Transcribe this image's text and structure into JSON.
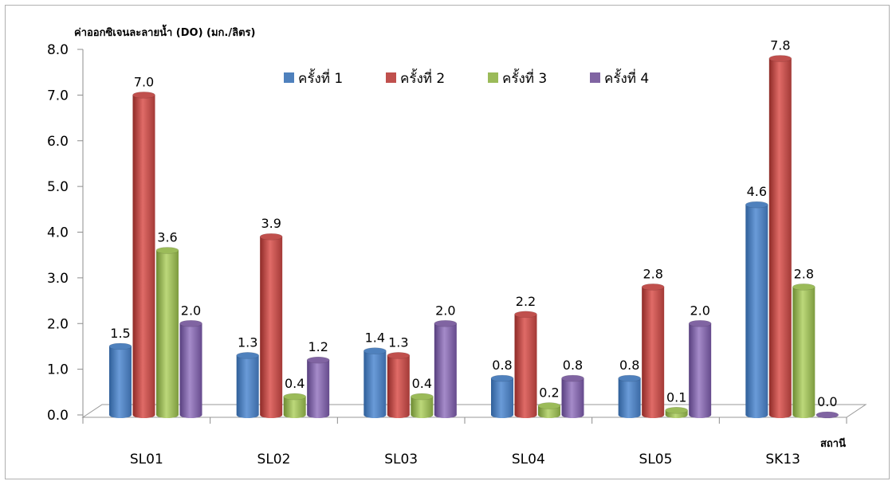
{
  "chart_data": {
    "type": "bar",
    "title": "",
    "ylabel": "ค่าออกซิเจนละลายน้ำ (DO) (มก./ลิตร)",
    "xlabel": "สถานี",
    "ylim": [
      0,
      8
    ],
    "yticks": [
      "0.0",
      "1.0",
      "2.0",
      "3.0",
      "4.0",
      "5.0",
      "6.0",
      "7.0",
      "8.0"
    ],
    "categories": [
      "SL01",
      "SL02",
      "SL03",
      "SL04",
      "SL05",
      "SK13"
    ],
    "legend_position": "top",
    "series": [
      {
        "name": "ครั้งที่ 1",
        "color": "#4f81bd",
        "values": [
          1.5,
          1.3,
          1.4,
          0.8,
          0.8,
          4.6
        ],
        "labels": [
          "1.5",
          "1.3",
          "1.4",
          "0.8",
          "0.8",
          "4.6"
        ]
      },
      {
        "name": "ครั้งที่ 2",
        "color": "#c0504d",
        "values": [
          7.0,
          3.9,
          1.3,
          2.2,
          2.8,
          7.8
        ],
        "labels": [
          "7.0",
          "3.9",
          "1.3",
          "2.2",
          "2.8",
          "7.8"
        ]
      },
      {
        "name": "ครั้งที่ 3",
        "color": "#9bbb59",
        "values": [
          3.6,
          0.4,
          0.4,
          0.2,
          0.1,
          2.8
        ],
        "labels": [
          "3.6",
          "0.4",
          "0.4",
          "0.2",
          "0.1",
          "2.8"
        ]
      },
      {
        "name": "ครั้งที่ 4",
        "color": "#8064a2",
        "values": [
          2.0,
          1.2,
          2.0,
          0.8,
          2.0,
          0.0
        ],
        "labels": [
          "2.0",
          "1.2",
          "2.0",
          "0.8",
          "2.0",
          "0.0"
        ]
      }
    ]
  }
}
